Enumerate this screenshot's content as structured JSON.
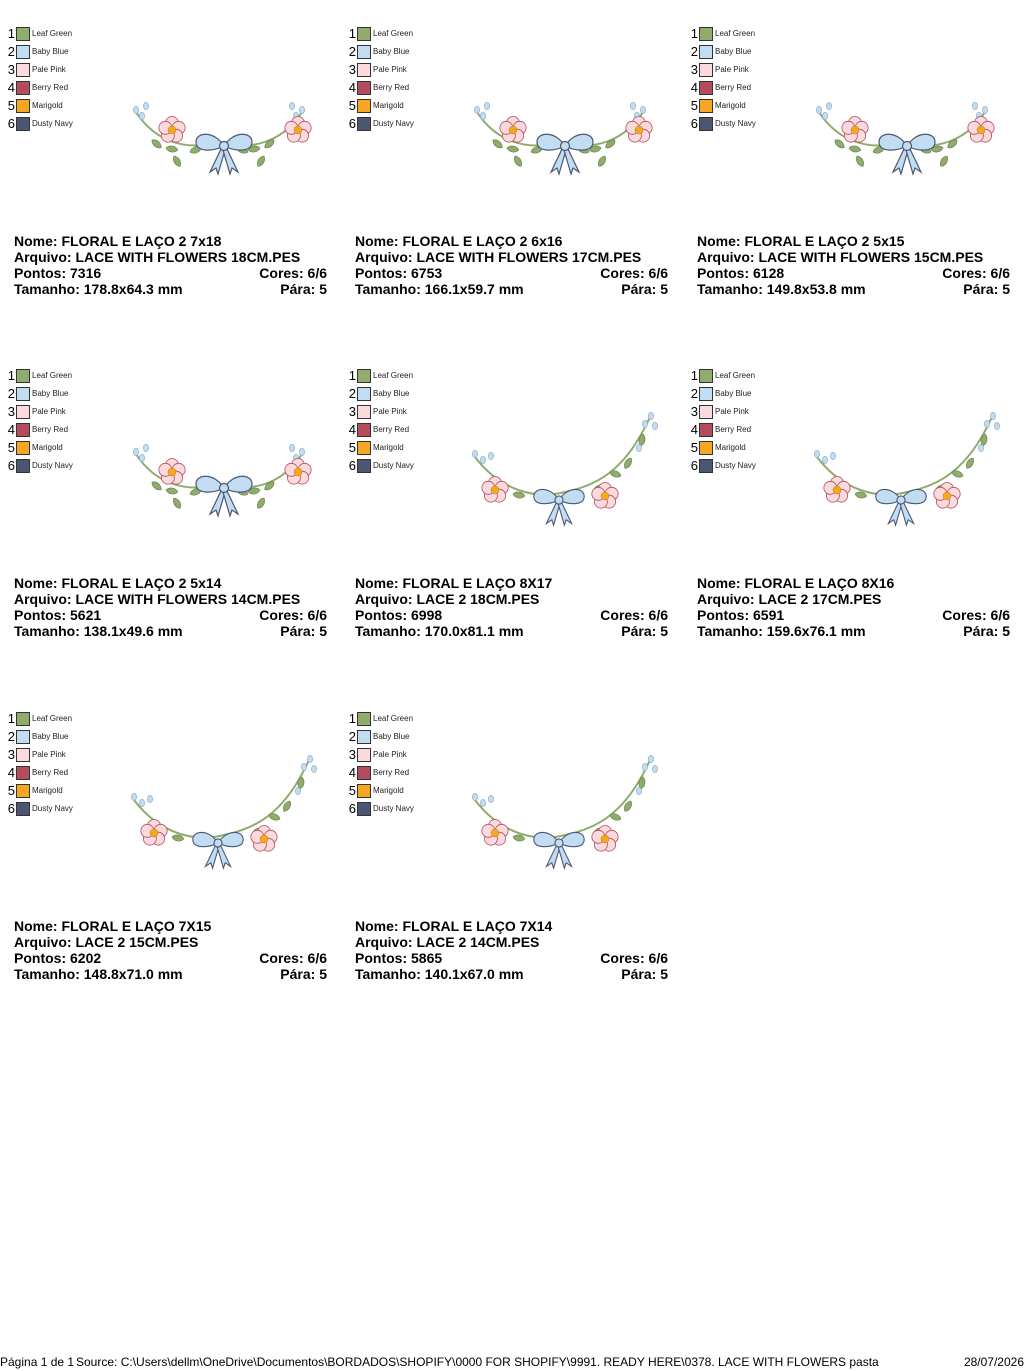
{
  "palette": [
    {
      "num": "1",
      "name": "Leaf Green",
      "color": "#8fac6c"
    },
    {
      "num": "2",
      "name": "Baby Blue",
      "color": "#c2dcf2"
    },
    {
      "num": "3",
      "name": "Pale Pink",
      "color": "#fadadd"
    },
    {
      "num": "4",
      "name": "Berry Red",
      "color": "#b44c5e"
    },
    {
      "num": "5",
      "name": "Marigold",
      "color": "#f5a623"
    },
    {
      "num": "6",
      "name": "Dusty Navy",
      "color": "#4a5672"
    }
  ],
  "labels": {
    "nome": "Nome:",
    "arquivo": "Arquivo:",
    "pontos": "Pontos:",
    "cores": "Cores:",
    "tamanho": "Tamanho:",
    "para": "Pára:"
  },
  "designs": [
    {
      "nome": "FLORAL E LAÇO 2 7x18",
      "arquivo": "LACE WITH FLOWERS 18CM.PES",
      "pontos": "7316",
      "cores": "6/6",
      "tamanho": "178.8x64.3 mm",
      "para": "5",
      "style": "flat"
    },
    {
      "nome": "FLORAL E LAÇO 2 6x16",
      "arquivo": "LACE WITH FLOWERS 17CM.PES",
      "pontos": "6753",
      "cores": "6/6",
      "tamanho": "166.1x59.7 mm",
      "para": "5",
      "style": "flat"
    },
    {
      "nome": "FLORAL E LAÇO 2 5x15",
      "arquivo": "LACE WITH FLOWERS 15CM.PES",
      "pontos": "6128",
      "cores": "6/6",
      "tamanho": "149.8x53.8 mm",
      "para": "5",
      "style": "flat"
    },
    {
      "nome": "FLORAL E LAÇO 2 5x14",
      "arquivo": "LACE WITH FLOWERS 14CM.PES",
      "pontos": "5621",
      "cores": "6/6",
      "tamanho": "138.1x49.6 mm",
      "para": "5",
      "style": "flat"
    },
    {
      "nome": "FLORAL E LAÇO 8X17",
      "arquivo": "LACE 2 18CM.PES",
      "pontos": "6998",
      "cores": "6/6",
      "tamanho": "170.0x81.1 mm",
      "para": "5",
      "style": "curved"
    },
    {
      "nome": "FLORAL E LAÇO 8X16",
      "arquivo": "LACE 2 17CM.PES",
      "pontos": "6591",
      "cores": "6/6",
      "tamanho": "159.6x76.1 mm",
      "para": "5",
      "style": "curved"
    },
    {
      "nome": "FLORAL E LAÇO 7X15",
      "arquivo": "LACE 2 15CM.PES",
      "pontos": "6202",
      "cores": "6/6",
      "tamanho": "148.8x71.0 mm",
      "para": "5",
      "style": "curved"
    },
    {
      "nome": "FLORAL E LAÇO 7X14",
      "arquivo": "LACE 2 14CM.PES",
      "pontos": "5865",
      "cores": "6/6",
      "tamanho": "140.1x67.0 mm",
      "para": "5",
      "style": "curved"
    }
  ],
  "footer": {
    "page": "Página 1 de 1",
    "source": "Source: C:\\Users\\dellm\\OneDrive\\Documentos\\BORDADOS\\SHOPIFY\\0000 FOR SHOPIFY\\9991. READY HERE\\0378. LACE WITH FLOWERS pasta",
    "date": "28/07/2026"
  }
}
